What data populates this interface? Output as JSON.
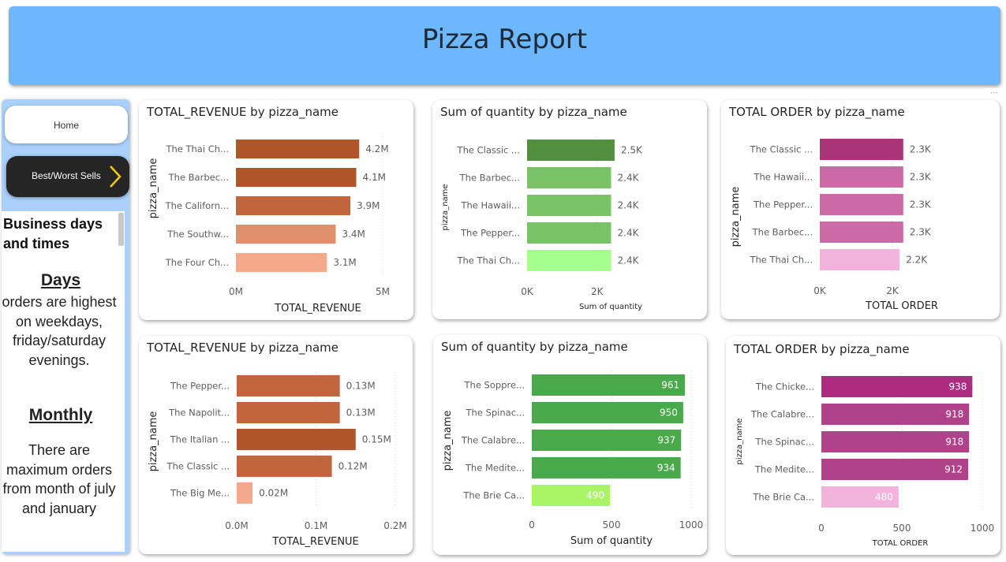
{
  "header": {
    "title": "Pizza Report"
  },
  "nav": {
    "home_label": "Home",
    "best_worst_label": "Best/Worst Sells"
  },
  "textbox": {
    "heading": "Business days and times",
    "days_title": "Days",
    "days_text": "orders are highest on weekdays, friday/saturday evenings.",
    "monthly_title": "Monthly",
    "monthly_text": "There are maximum orders from month of july and january"
  },
  "colors": {
    "header": "#6cb7fe",
    "nav_panel": "#a9d1fb",
    "revenue_dark": "#b0542a",
    "revenue_mid": "#c2643c",
    "revenue_light": "#e0906c",
    "revenue_lighter": "#f3a98a",
    "green_dark": "#528f3e",
    "green_mid": "#79c265",
    "green_light": "#a5ff8f",
    "green_bright": "#4aa94a",
    "green_lime": "#aaf566",
    "pink_dark": "#a93478",
    "pink_mid": "#cc6aa8",
    "pink_light": "#f2b3dc",
    "pink_strong": "#ac2c80",
    "pink_med": "#b0428a"
  },
  "chart_data": [
    {
      "type": "bar",
      "orientation": "horizontal",
      "title": "TOTAL_REVENUE by pizza_name",
      "xlabel": "TOTAL_REVENUE",
      "ylabel": "pizza_name",
      "categories": [
        "The Thai Ch...",
        "The Barbec...",
        "The Californ...",
        "The Southw...",
        "The Four Ch..."
      ],
      "values": [
        4.2,
        4.1,
        3.9,
        3.4,
        3.1
      ],
      "data_labels": [
        "4.2M",
        "4.1M",
        "3.9M",
        "3.4M",
        "3.1M"
      ],
      "colors": [
        "#b0542a",
        "#b0542a",
        "#c2643c",
        "#e0906c",
        "#f3a98a"
      ],
      "xlim": [
        0,
        5
      ],
      "x_ticks": [
        0,
        5
      ],
      "x_tick_labels": [
        "0M",
        "5M"
      ],
      "value_labels_inside": false
    },
    {
      "type": "bar",
      "orientation": "horizontal",
      "title": "Sum of quantity by pizza_name",
      "xlabel": "Sum of quantity",
      "ylabel": "pizza_name",
      "categories": [
        "The Classic ...",
        "The Barbec...",
        "The Hawaii...",
        "The Pepper...",
        "The Thai Ch..."
      ],
      "values": [
        2.5,
        2.4,
        2.4,
        2.4,
        2.4
      ],
      "data_labels": [
        "2.5K",
        "2.4K",
        "2.4K",
        "2.4K",
        "2.4K"
      ],
      "colors": [
        "#528f3e",
        "#79c265",
        "#79c265",
        "#79c265",
        "#a5ff8f"
      ],
      "xlim": [
        0,
        3.2
      ],
      "x_ticks": [
        0,
        2
      ],
      "x_tick_labels": [
        "0K",
        "2K"
      ],
      "value_labels_inside": false
    },
    {
      "type": "bar",
      "orientation": "horizontal",
      "title": "TOTAL ORDER by pizza_name",
      "xlabel": "TOTAL ORDER",
      "ylabel": "pizza_name",
      "categories": [
        "The Classic ...",
        "The Hawaii...",
        "The Pepper...",
        "The Barbec...",
        "The Thai Ch..."
      ],
      "values": [
        2.3,
        2.3,
        2.3,
        2.3,
        2.2
      ],
      "data_labels": [
        "2.3K",
        "2.3K",
        "2.3K",
        "2.3K",
        "2.2K"
      ],
      "colors": [
        "#a93478",
        "#cc6aa8",
        "#cc6aa8",
        "#cc6aa8",
        "#f2b3dc"
      ],
      "xlim": [
        0,
        3.0
      ],
      "x_ticks": [
        0,
        2
      ],
      "x_tick_labels": [
        "0K",
        "2K"
      ],
      "value_labels_inside": false
    },
    {
      "type": "bar",
      "orientation": "horizontal",
      "title": "TOTAL_REVENUE by pizza_name",
      "xlabel": "TOTAL_REVENUE",
      "ylabel": "pizza_name",
      "categories": [
        "The Pepper...",
        "The Napolit...",
        "The Italian ...",
        "The Classic ...",
        "The Big Me..."
      ],
      "values": [
        0.13,
        0.13,
        0.15,
        0.12,
        0.02
      ],
      "data_labels": [
        "0.13M",
        "0.13M",
        "0.15M",
        "0.12M",
        "0.02M"
      ],
      "colors": [
        "#c2643c",
        "#c2643c",
        "#b0542a",
        "#c2643c",
        "#f3a98a"
      ],
      "xlim": [
        0,
        0.2
      ],
      "x_ticks": [
        0,
        0.1,
        0.2
      ],
      "x_tick_labels": [
        "0.0M",
        "0.1M",
        "0.2M"
      ],
      "value_labels_inside": false
    },
    {
      "type": "bar",
      "orientation": "horizontal",
      "title": "Sum of quantity by pizza_name",
      "xlabel": "Sum of quantity",
      "ylabel": "pizza_name",
      "categories": [
        "The Soppre...",
        "The Spinac...",
        "The Calabre...",
        "The Medite...",
        "The Brie Ca..."
      ],
      "values": [
        961,
        950,
        937,
        934,
        490
      ],
      "data_labels": [
        "961",
        "950",
        "937",
        "934",
        "490"
      ],
      "colors": [
        "#4aa94a",
        "#4aa94a",
        "#4aa94a",
        "#4aa94a",
        "#aaf566"
      ],
      "xlim": [
        0,
        1000
      ],
      "x_ticks": [
        0,
        500,
        1000
      ],
      "x_tick_labels": [
        "0",
        "500",
        "1000"
      ],
      "value_labels_inside": true
    },
    {
      "type": "bar",
      "orientation": "horizontal",
      "title": "TOTAL ORDER by pizza_name",
      "xlabel": "TOTAL ORDER",
      "ylabel": "pizza_name",
      "categories": [
        "The Chicke...",
        "The Calabre...",
        "The Spinac...",
        "The Medite...",
        "The Brie Ca..."
      ],
      "values": [
        938,
        918,
        918,
        912,
        480
      ],
      "data_labels": [
        "938",
        "918",
        "918",
        "912",
        "480"
      ],
      "colors": [
        "#ac2c80",
        "#b0428a",
        "#b0428a",
        "#b0428a",
        "#f2b3dc"
      ],
      "xlim": [
        0,
        1000
      ],
      "x_ticks": [
        0,
        500,
        1000
      ],
      "x_tick_labels": [
        "0",
        "500",
        "1000"
      ],
      "value_labels_inside": true
    }
  ]
}
